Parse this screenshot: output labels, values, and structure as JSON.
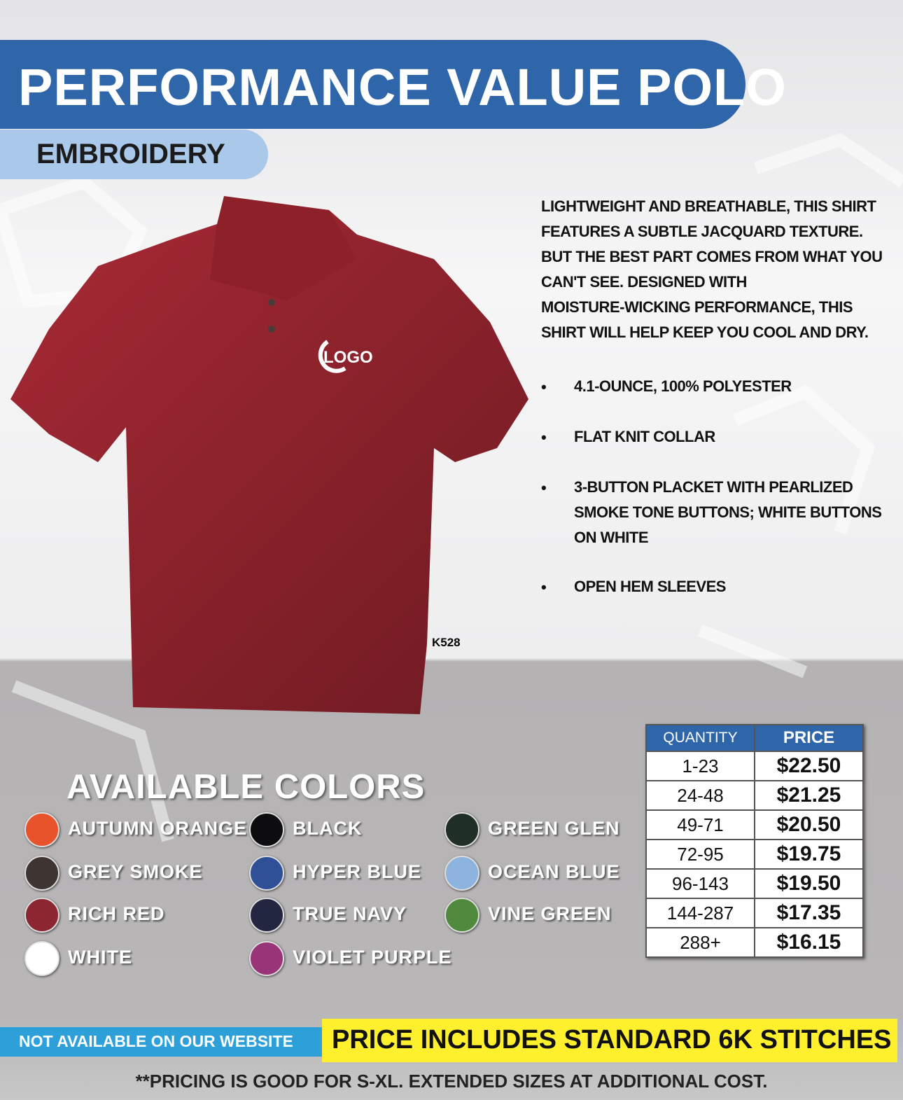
{
  "header": {
    "title": "PERFORMANCE VALUE POLO",
    "subtitle": "EMBROIDERY"
  },
  "product": {
    "description": [
      "LIGHTWEIGHT AND BREATHABLE, THIS SHIRT",
      "FEATURES A SUBTLE JACQUARD TEXTURE.",
      "BUT THE BEST PART COMES FROM WHAT YOU",
      "CAN'T SEE. DESIGNED WITH",
      "MOISTURE-WICKING PERFORMANCE, THIS",
      "SHIRT WILL HELP KEEP YOU COOL AND DRY."
    ],
    "features": [
      "4.1-OUNCE, 100% POLYESTER",
      "FLAT KNIT COLLAR",
      "3-BUTTON PLACKET WITH PEARLIZED SMOKE TONE BUTTONS; WHITE BUTTONS ON WHITE",
      "OPEN HEM SLEEVES"
    ],
    "logo_text": "LOGO",
    "style_code": "K528"
  },
  "colors": {
    "title": "AVAILABLE COLORS",
    "items": [
      {
        "name": "AUTUMN ORANGE",
        "color": "#e8532c"
      },
      {
        "name": "GREY SMOKE",
        "color": "#3e3533"
      },
      {
        "name": "RICH RED",
        "color": "#8c2630"
      },
      {
        "name": "WHITE",
        "color": "#ffffff"
      },
      {
        "name": "BLACK",
        "color": "#0d0d0f"
      },
      {
        "name": "HYPER BLUE",
        "color": "#2f4f97"
      },
      {
        "name": "TRUE NAVY",
        "color": "#222640"
      },
      {
        "name": "VIOLET PURPLE",
        "color": "#9a3478"
      },
      {
        "name": "GREEN GLEN",
        "color": "#1f2f26"
      },
      {
        "name": "OCEAN BLUE",
        "color": "#8db4de"
      },
      {
        "name": "VINE GREEN",
        "color": "#4f8a3c"
      }
    ]
  },
  "pricing": {
    "headers": [
      "QUANTITY",
      "PRICE"
    ],
    "rows": [
      [
        "1-23",
        "$22.50"
      ],
      [
        "24-48",
        "$21.25"
      ],
      [
        "49-71",
        "$20.50"
      ],
      [
        "72-95",
        "$19.75"
      ],
      [
        "96-143",
        "$19.50"
      ],
      [
        "144-287",
        "$17.35"
      ],
      [
        "288+",
        "$16.15"
      ]
    ]
  },
  "footer": {
    "website_note": "NOT AVAILABLE ON OUR WEBSITE",
    "stitch_note": "PRICE INCLUDES STANDARD 6K STITCHES",
    "sizing_note": "**PRICING IS GOOD FOR S-XL.  EXTENDED SIZES AT ADDITIONAL COST."
  }
}
